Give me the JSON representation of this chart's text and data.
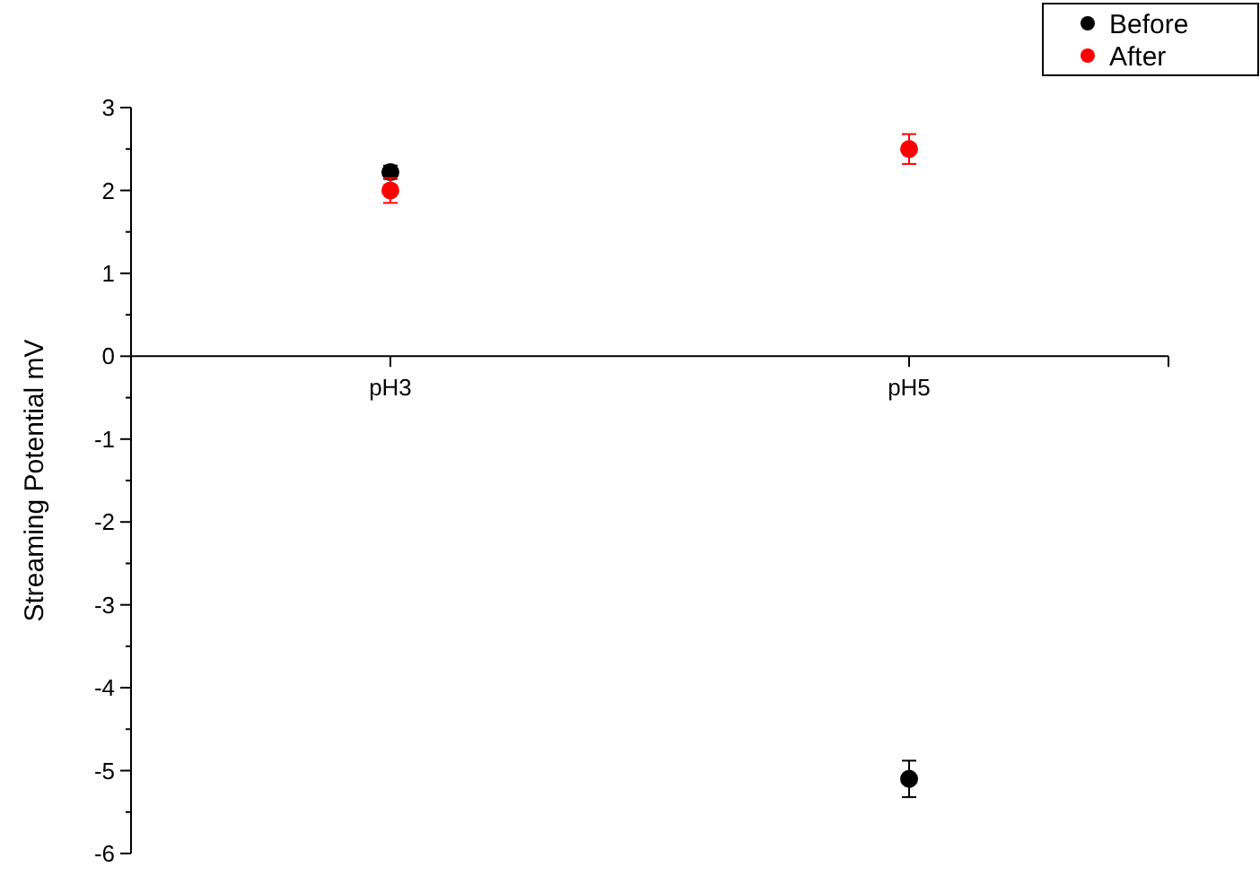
{
  "chart_data": {
    "type": "scatter",
    "ylabel": "Streaming Potential mV",
    "categories": [
      "pH3",
      "pH5"
    ],
    "series": [
      {
        "name": "Before",
        "color": "#000000",
        "values": [
          2.22,
          -5.1
        ],
        "errors": [
          0.08,
          0.22
        ]
      },
      {
        "name": "After",
        "color": "#ff0000",
        "values": [
          2.0,
          2.5
        ],
        "errors": [
          0.15,
          0.18
        ]
      }
    ],
    "ylim": [
      -6,
      3
    ],
    "yticks": [
      -6,
      {
        "value": -5.5,
        "label": null
      },
      -5,
      {
        "value": -4.5,
        "label": null
      },
      -4,
      {
        "value": -3.5,
        "label": null
      },
      -3,
      {
        "value": -2.5,
        "label": null
      },
      -2,
      {
        "value": -1.5,
        "label": null
      },
      -1,
      {
        "value": -0.5,
        "label": null
      },
      0,
      {
        "value": 0.5,
        "label": null
      },
      1,
      {
        "value": 1.5,
        "label": null
      },
      2,
      {
        "value": 2.5,
        "label": null
      },
      3
    ],
    "marker": "circle",
    "legend": "top right",
    "grid": false
  }
}
